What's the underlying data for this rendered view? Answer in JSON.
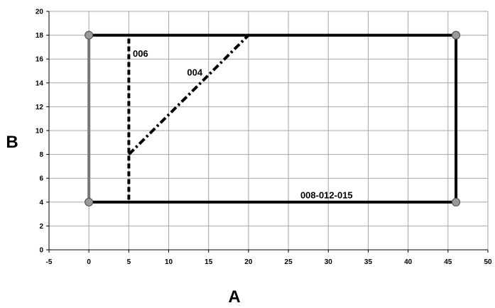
{
  "chart_data": {
    "type": "line",
    "xlabel": "A",
    "ylabel": "B",
    "xlim": [
      -5,
      50
    ],
    "ylim": [
      0,
      20
    ],
    "x_ticks": [
      -5,
      0,
      5,
      10,
      15,
      20,
      25,
      30,
      35,
      40,
      45,
      50
    ],
    "y_ticks": [
      0,
      2,
      4,
      6,
      8,
      10,
      12,
      14,
      16,
      18,
      20
    ],
    "grid": true,
    "series": [
      {
        "x": [
          0,
          46
        ],
        "y": [
          18,
          18
        ],
        "style": "solid",
        "color": "#000000"
      },
      {
        "x": [
          0,
          46
        ],
        "y": [
          4,
          4
        ],
        "style": "solid",
        "color": "#000000"
      },
      {
        "x": [
          0,
          0
        ],
        "y": [
          4,
          18
        ],
        "style": "solid",
        "color": "#777777"
      },
      {
        "x": [
          46,
          46
        ],
        "y": [
          4,
          18
        ],
        "style": "solid",
        "color": "#000000"
      },
      {
        "x": [
          5,
          5
        ],
        "y": [
          4.2,
          18
        ],
        "style": "dashed",
        "color": "#000000"
      },
      {
        "x": [
          5,
          20
        ],
        "y": [
          8,
          18
        ],
        "style": "dash-dot",
        "color": "#000000"
      }
    ],
    "markers": [
      {
        "x": 0,
        "y": 18
      },
      {
        "x": 46,
        "y": 18
      },
      {
        "x": 0,
        "y": 4
      },
      {
        "x": 46,
        "y": 4
      }
    ],
    "annotations": [
      {
        "text": "006",
        "x": 5.5,
        "y": 16.5
      },
      {
        "text": "004",
        "x": 12.3,
        "y": 14.9
      },
      {
        "text": "008-012-015",
        "x": 26.5,
        "y": 4.6
      }
    ]
  },
  "colors": {
    "grid": "#a6a6a6",
    "axis": "#000000",
    "marker_fill": "#9a9a9a",
    "marker_stroke": "#555555"
  }
}
